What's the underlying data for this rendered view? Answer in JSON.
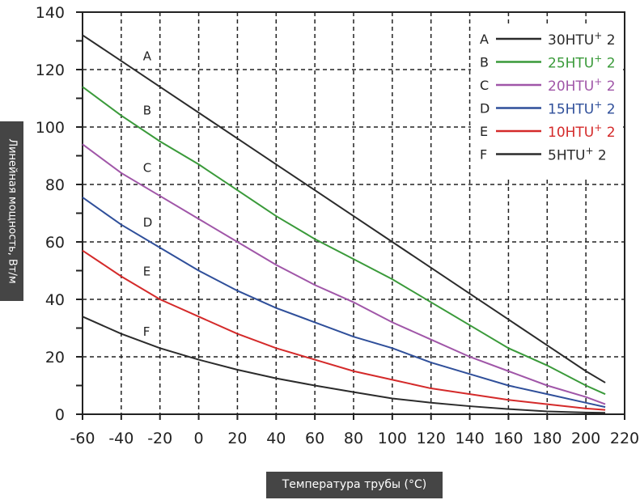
{
  "chart_data": {
    "type": "line",
    "xlabel": "Температура трубы (°C)",
    "ylabel": "Линейная мощность, Вт/м",
    "xlim": [
      -60,
      220
    ],
    "ylim": [
      0,
      140
    ],
    "xticks": [
      -60,
      -40,
      -20,
      0,
      20,
      40,
      60,
      80,
      100,
      120,
      140,
      160,
      180,
      200,
      220
    ],
    "yticks": [
      0,
      20,
      40,
      60,
      80,
      100,
      120,
      140
    ],
    "grid": "dashed",
    "legend_position": "top-right",
    "x": [
      -60,
      -40,
      -20,
      0,
      20,
      40,
      60,
      80,
      100,
      120,
      140,
      160,
      180,
      200,
      210
    ],
    "series": [
      {
        "letter": "A",
        "name": "30HTU",
        "sup": "+",
        "suffix": "2",
        "color": "#2b2b2b",
        "values": [
          132,
          123,
          114,
          105,
          96,
          87,
          78,
          69,
          60,
          51,
          42,
          33,
          24,
          15,
          11
        ]
      },
      {
        "letter": "B",
        "name": "25HTU",
        "sup": "+",
        "suffix": "2",
        "color": "#3a9a3a",
        "values": [
          114,
          104,
          95,
          87,
          78,
          69,
          61,
          54,
          47,
          39,
          31,
          23,
          17,
          10,
          7
        ]
      },
      {
        "letter": "C",
        "name": "20HTU",
        "sup": "+",
        "suffix": "2",
        "color": "#a056a8",
        "values": [
          94,
          84,
          76,
          68,
          60,
          52,
          45,
          39,
          32,
          26,
          20,
          15,
          10,
          6,
          3.5
        ]
      },
      {
        "letter": "D",
        "name": "15HTU",
        "sup": "+",
        "suffix": "2",
        "color": "#2f4f9a",
        "values": [
          75.5,
          66,
          58,
          50,
          43,
          37,
          32,
          27,
          23,
          18,
          14,
          10,
          7,
          4,
          2.5
        ]
      },
      {
        "letter": "E",
        "name": "10HTU",
        "sup": "+",
        "suffix": "2",
        "color": "#d42a2a",
        "values": [
          57,
          48,
          40,
          34,
          28,
          23,
          19,
          15,
          12,
          9,
          7,
          5,
          3.5,
          2,
          1.5
        ]
      },
      {
        "letter": "F",
        "name": "5HTU",
        "sup": "+",
        "suffix": "2",
        "color": "#2b2b2b",
        "values": [
          34,
          28,
          23,
          19,
          15.5,
          12.5,
          10,
          7.7,
          5.5,
          4,
          2.8,
          1.8,
          1,
          0.6,
          0.5
        ]
      }
    ],
    "curve_labels": [
      {
        "letter": "A",
        "x": -30,
        "y": 125
      },
      {
        "letter": "B",
        "x": -30,
        "y": 106
      },
      {
        "letter": "C",
        "x": -30,
        "y": 86
      },
      {
        "letter": "D",
        "x": -30,
        "y": 67
      },
      {
        "letter": "E",
        "x": -30,
        "y": 50
      },
      {
        "letter": "F",
        "x": -30,
        "y": 29
      }
    ]
  }
}
